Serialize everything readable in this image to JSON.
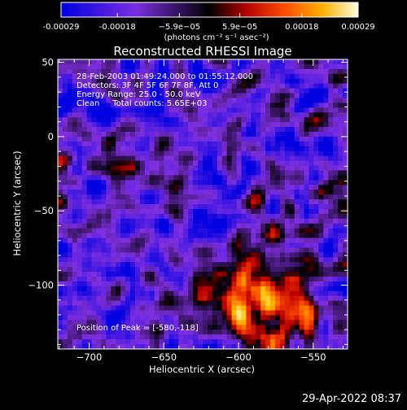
{
  "colorbar": {
    "tick_labels": [
      "-0.00029",
      "-0.00018",
      "−5.9e−05",
      "5.9e−05",
      "0.00018",
      "0.00029"
    ],
    "tick_values": [
      -0.00029,
      -0.00018,
      -5.9e-05,
      5.9e-05,
      0.00018,
      0.00029
    ],
    "range": [
      -0.00029,
      0.00029
    ],
    "units": "(photons cm⁻² s⁻¹ asec⁻²)"
  },
  "plot": {
    "title": "Reconstructed RHESSI Image",
    "info_lines": [
      "28-Feb-2003 01:49:24.000 to 01:55:12.000",
      "Detectors: 3F 4F 5F 6F 7F 8F, Att 0",
      "Energy Range: 25.0 - 50.0 keV",
      "Clean     Total counts: 5.65E+03"
    ],
    "peak_label": "Position of Peak = [-580,-118]"
  },
  "chart_data": {
    "type": "heatmap",
    "title": "Reconstructed RHESSI Image",
    "xlabel": "Heliocentric X (arcsec)",
    "ylabel": "Heliocentric Y (arcsec)",
    "xlim": [
      -721,
      -527
    ],
    "ylim": [
      -143,
      52
    ],
    "x_ticks": [
      -700,
      -650,
      -600,
      -550
    ],
    "y_ticks": [
      50,
      0,
      -50,
      -100
    ],
    "x_tick_labels": [
      "−700",
      "−650",
      "−600",
      "−550"
    ],
    "y_tick_labels": [
      "50",
      "0",
      "−50",
      "−100"
    ],
    "peak": [
      -580,
      -118
    ],
    "grid": false,
    "colormap": [
      "#0000e0",
      "#8030e0",
      "#000000",
      "#c00000",
      "#ff5000",
      "#ffc000",
      "#ffffd0"
    ]
  },
  "footer": {
    "timestamp": "29-Apr-2022 08:37"
  }
}
